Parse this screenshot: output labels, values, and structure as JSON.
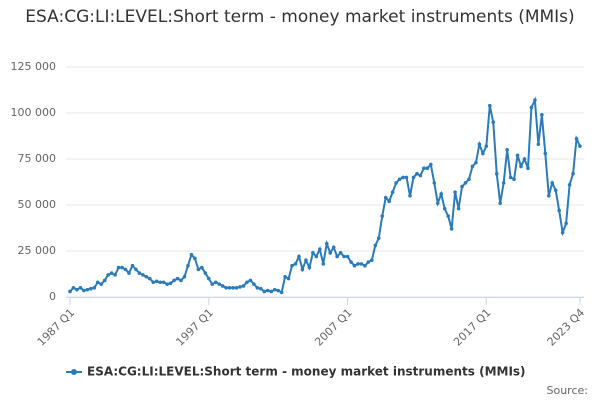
{
  "chart_data": {
    "type": "line",
    "title": "ESA:CG:LI:LEVEL:Short term - money market instruments (MMIs)",
    "source": "Source:",
    "categories": [
      "1987 Q1",
      null,
      null,
      null,
      null,
      null,
      null,
      null,
      null,
      null,
      null,
      null,
      null,
      null,
      null,
      null,
      null,
      null,
      null,
      null,
      null,
      null,
      null,
      null,
      null,
      null,
      null,
      null,
      null,
      null,
      null,
      null,
      null,
      null,
      null,
      null,
      null,
      null,
      null,
      null,
      "1997 Q1",
      null,
      null,
      null,
      null,
      null,
      null,
      null,
      null,
      null,
      null,
      null,
      null,
      null,
      null,
      null,
      null,
      null,
      null,
      null,
      null,
      null,
      null,
      null,
      null,
      null,
      null,
      null,
      null,
      null,
      null,
      null,
      null,
      null,
      null,
      null,
      null,
      null,
      null,
      null,
      "2007 Q1",
      null,
      null,
      null,
      null,
      null,
      null,
      null,
      null,
      null,
      null,
      null,
      null,
      null,
      null,
      null,
      null,
      null,
      null,
      null,
      null,
      null,
      null,
      null,
      null,
      null,
      null,
      null,
      null,
      null,
      null,
      null,
      null,
      null,
      null,
      null,
      null,
      null,
      null,
      null,
      "2017 Q1",
      null,
      null,
      null,
      null,
      null,
      null,
      null,
      null,
      null,
      null,
      null,
      null,
      null,
      null,
      null,
      null,
      null,
      null,
      null,
      null,
      null,
      null,
      null,
      null,
      null,
      null,
      "2023 Q4"
    ],
    "series": [
      {
        "name": "ESA:CG:LI:LEVEL:Short term - money market instruments (MMIs)",
        "color": "#2b7bba",
        "values": [
          3000,
          5000,
          4000,
          5000,
          3500,
          4000,
          4500,
          5000,
          8000,
          7000,
          9000,
          12000,
          13000,
          12000,
          16000,
          16000,
          15000,
          13000,
          17000,
          15000,
          13000,
          12000,
          11000,
          10000,
          8000,
          8500,
          8000,
          8000,
          7000,
          7500,
          9000,
          10000,
          9000,
          11000,
          17000,
          23000,
          21000,
          15000,
          16000,
          13000,
          10000,
          7000,
          8000,
          7000,
          6000,
          5000,
          5000,
          5000,
          5000,
          5500,
          6000,
          8000,
          9000,
          7000,
          5000,
          4500,
          3000,
          3500,
          3000,
          4000,
          3500,
          2500,
          11000,
          10000,
          17000,
          18000,
          22000,
          15000,
          20000,
          16000,
          24000,
          22000,
          26000,
          18000,
          29000,
          24000,
          27000,
          22000,
          24000,
          22000,
          22000,
          19000,
          17000,
          18000,
          18000,
          17000,
          19000,
          20000,
          28000,
          32000,
          44000,
          54000,
          52000,
          57000,
          62000,
          64000,
          65000,
          65000,
          55000,
          65000,
          67000,
          66000,
          70000,
          70000,
          72000,
          62000,
          51000,
          56000,
          48000,
          44000,
          37000,
          57000,
          48000,
          60000,
          62000,
          64000,
          71000,
          73000,
          83000,
          78000,
          82000,
          104000,
          95000,
          67000,
          51000,
          62000,
          80000,
          65000,
          64000,
          77000,
          71000,
          75000,
          70000,
          103000,
          107000,
          83000,
          99000,
          78000,
          55000,
          62000,
          58000,
          47000,
          35000,
          40000,
          61000,
          67000,
          86000,
          82000
        ]
      }
    ],
    "ylim": [
      0,
      125000
    ],
    "yticks": [
      0,
      {
        "value": 25000,
        "label": "25 000"
      },
      {
        "value": 50000,
        "label": "50 000"
      },
      {
        "value": 75000,
        "label": "75 000"
      },
      {
        "value": 100000,
        "label": "100 000"
      },
      {
        "value": 125000,
        "label": "125 000"
      }
    ],
    "grid": true
  }
}
